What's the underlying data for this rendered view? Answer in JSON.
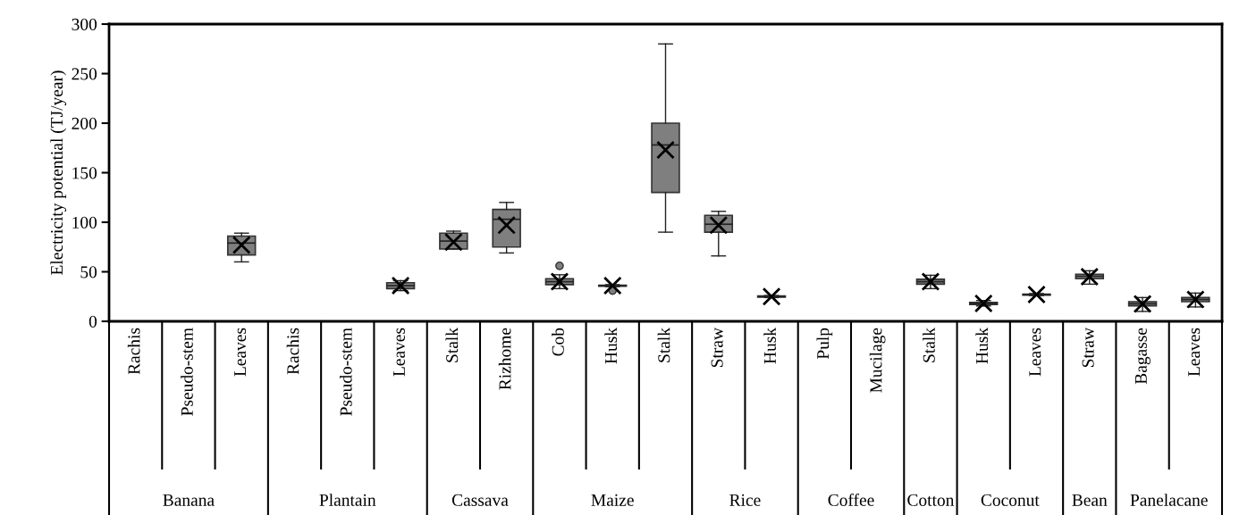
{
  "chart_data": {
    "type": "box",
    "ylabel": "Electricity potential (TJ/year)",
    "ylim": [
      0,
      300
    ],
    "yticks": [
      0,
      50,
      100,
      150,
      200,
      250,
      300
    ],
    "color": "#7f7f7f",
    "marker": "cross",
    "categories": [
      "Rachis",
      "Pseudo-stem",
      "Leaves",
      "Rachis",
      "Pseudo-stem",
      "Leaves",
      "Stalk",
      "Rizhome",
      "Cob",
      "Husk",
      "Stalk",
      "Straw",
      "Husk",
      "Pulp",
      "Mucilage",
      "Stalk",
      "Husk",
      "Leaves",
      "Straw",
      "Bagasse",
      "Leaves"
    ],
    "boxes": [
      null,
      null,
      {
        "low": 60,
        "q1": 67,
        "median": 79,
        "q3": 86,
        "high": 89,
        "mean": 77
      },
      null,
      null,
      {
        "low": 31,
        "q1": 33,
        "median": 36,
        "q3": 39,
        "high": 41,
        "mean": 36
      },
      {
        "low": 73,
        "q1": 73,
        "median": 81,
        "q3": 89,
        "high": 91,
        "mean": 80
      },
      {
        "low": 69,
        "q1": 75,
        "median": 103,
        "q3": 113,
        "high": 120,
        "mean": 97
      },
      {
        "low": 33,
        "q1": 37,
        "median": 40,
        "q3": 43,
        "high": 47,
        "mean": 40,
        "outliers": [
          56
        ]
      },
      {
        "low": 35,
        "q1": 35.5,
        "median": 36,
        "q3": 36.5,
        "high": 37,
        "mean": 36,
        "outliers": [
          31
        ]
      },
      {
        "low": 90,
        "q1": 130,
        "median": 178,
        "q3": 200,
        "high": 280,
        "mean": 173
      },
      {
        "low": 66,
        "q1": 90,
        "median": 98,
        "q3": 107,
        "high": 111,
        "mean": 97
      },
      {
        "low": 24,
        "q1": 24.5,
        "median": 25,
        "q3": 25.5,
        "high": 26,
        "mean": 25
      },
      null,
      null,
      {
        "low": 33,
        "q1": 37.5,
        "median": 40,
        "q3": 42.5,
        "high": 46.5,
        "mean": 40
      },
      {
        "low": 15.5,
        "q1": 17,
        "median": 18,
        "q3": 19,
        "high": 21,
        "mean": 18
      },
      {
        "low": 26,
        "q1": 26.5,
        "median": 27,
        "q3": 27.5,
        "high": 28,
        "mean": 27
      },
      {
        "low": 37.5,
        "q1": 43,
        "median": 45.5,
        "q3": 47.5,
        "high": 51,
        "mean": 45
      },
      {
        "low": 10,
        "q1": 15.6,
        "median": 17.7,
        "q3": 19.8,
        "high": 24,
        "mean": 17.5
      },
      {
        "low": 14.5,
        "q1": 19.8,
        "median": 22,
        "q3": 24,
        "high": 28.5,
        "mean": 22
      }
    ],
    "annotations": [
      "Banana",
      "Plantain",
      "Cassava",
      "Maize",
      "Rice",
      "Coffee",
      "Cotton",
      "Coconut",
      "Bean",
      "Panelacane"
    ]
  }
}
